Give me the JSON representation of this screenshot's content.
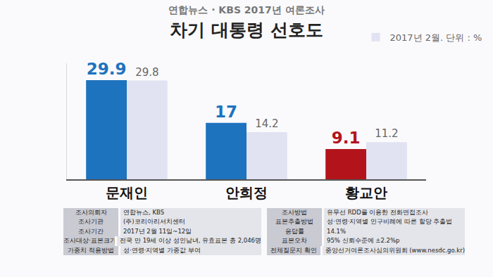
{
  "chart_data": {
    "type": "bar",
    "subtitle": "연합뉴스 · KBS  2017년 여론조사",
    "title": "차기 대통령 선호도",
    "categories": [
      "문재인",
      "안희정",
      "황교안"
    ],
    "series": [
      {
        "colors": [
          "#1e73be",
          "#1e73be",
          "#b3141c"
        ],
        "values": [
          29.9,
          17,
          9.1
        ]
      },
      {
        "name": "2017년 2월. 단위 : %",
        "color": "#e1e2f2",
        "values": [
          29.8,
          14.2,
          11.2
        ]
      }
    ],
    "ylim": [
      0,
      35
    ],
    "data_labels": true,
    "tick_labels": "x",
    "grid": false,
    "legend": "top-right"
  },
  "footer": {
    "left": [
      [
        "조사의뢰자",
        "연합뉴스, KBS"
      ],
      [
        "조사기관",
        "(주)코리아리서치센터"
      ],
      [
        "조사기간",
        "2017년 2월 11일~12일"
      ],
      [
        "조사대상·표본크기",
        "전국 만 19세 이상 성인남녀, 유효표본 총 2,046명"
      ],
      [
        "가중치 적용방법",
        "성·연령·지역별 가중값 부여"
      ]
    ],
    "right": [
      [
        "조사방법",
        "유무선 RDD를 이용한 전화면접조사"
      ],
      [
        "표본추출방법",
        "성·연령·지역별 인구비례에 따른 할당 추출법"
      ],
      [
        "응답률",
        "14.1%"
      ],
      [
        "표본오차",
        "95% 신뢰수준에 ±2.2%p"
      ],
      [
        "전체질문지 확인",
        "중앙선거여론조사심의위원회 (www.nesdc.go.kr)"
      ]
    ]
  }
}
